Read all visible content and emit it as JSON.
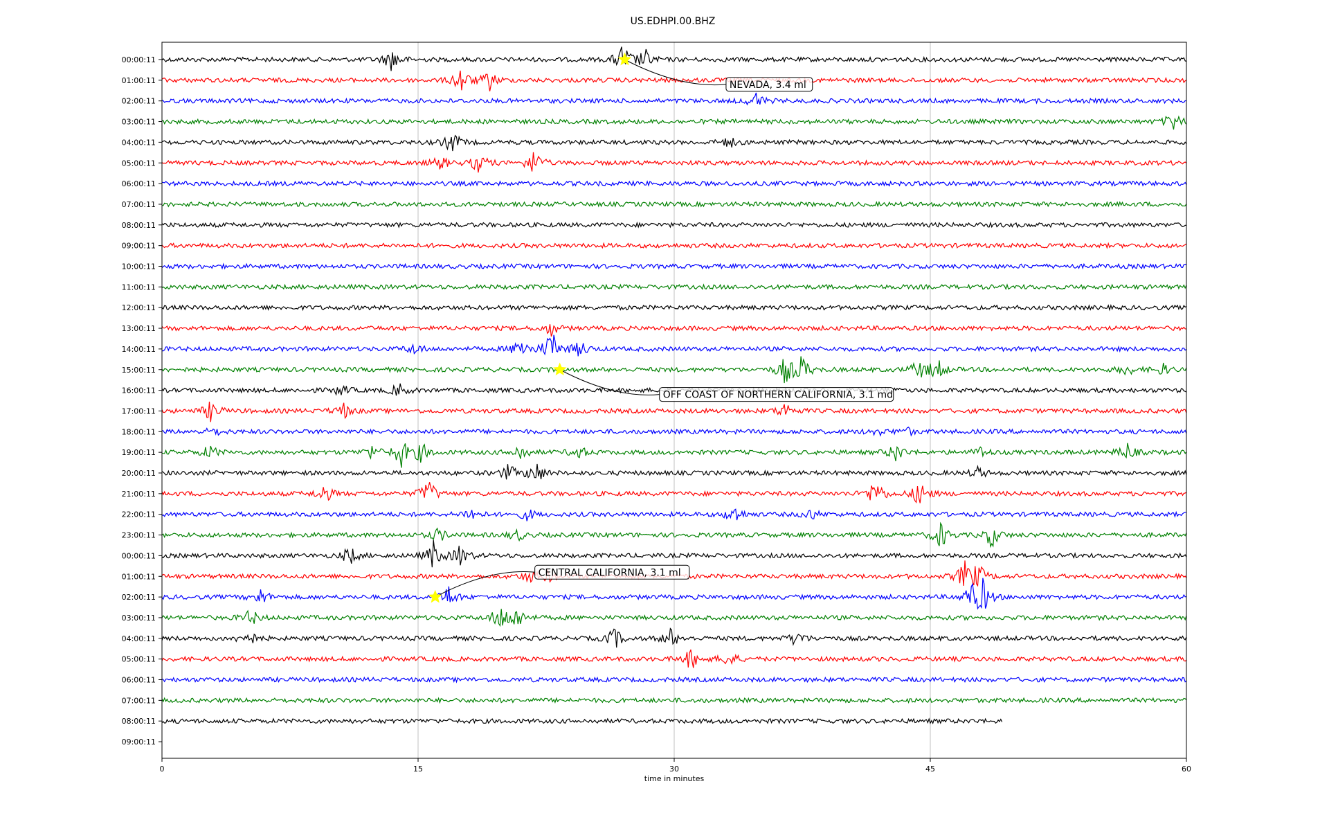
{
  "chart_data": {
    "type": "line",
    "title": "US.EDHPI.00.BHZ",
    "xlabel": "time in minutes",
    "ylabel": "",
    "xlim": [
      0,
      60
    ],
    "x_ticks": [
      0,
      15,
      30,
      45,
      60
    ],
    "x_tick_labels": [
      "0",
      "15",
      "30",
      "45",
      "60"
    ],
    "grid": "vertical lines at x ticks",
    "trace_colors": [
      "#000000",
      "#ff0000",
      "#0000ff",
      "#008000"
    ],
    "row_labels": [
      "00:00:11",
      "01:00:11",
      "02:00:11",
      "03:00:11",
      "04:00:11",
      "05:00:11",
      "06:00:11",
      "07:00:11",
      "08:00:11",
      "09:00:11",
      "10:00:11",
      "11:00:11",
      "12:00:11",
      "13:00:11",
      "14:00:11",
      "15:00:11",
      "16:00:11",
      "17:00:11",
      "18:00:11",
      "19:00:11",
      "20:00:11",
      "21:00:11",
      "22:00:11",
      "23:00:11",
      "00:00:11",
      "01:00:11",
      "02:00:11",
      "03:00:11",
      "04:00:11",
      "05:00:11",
      "06:00:11",
      "07:00:11",
      "08:00:11",
      "09:00:11"
    ],
    "traces_with_data": 33,
    "last_trace_end_minutes": 49.2,
    "bursts": [
      {
        "row": 0,
        "at": 13.5,
        "amp": 0.9
      },
      {
        "row": 0,
        "at": 27.0,
        "amp": 1.2
      },
      {
        "row": 0,
        "at": 28.3,
        "amp": 0.7
      },
      {
        "row": 1,
        "at": 17.5,
        "amp": 1.0
      },
      {
        "row": 1,
        "at": 19.2,
        "amp": 0.7
      },
      {
        "row": 2,
        "at": 34.8,
        "amp": 0.6
      },
      {
        "row": 3,
        "at": 59.2,
        "amp": 0.7
      },
      {
        "row": 4,
        "at": 17.0,
        "amp": 0.8
      },
      {
        "row": 4,
        "at": 33.2,
        "amp": 0.4
      },
      {
        "row": 5,
        "at": 16.3,
        "amp": 0.5
      },
      {
        "row": 5,
        "at": 18.6,
        "amp": 0.8
      },
      {
        "row": 5,
        "at": 21.8,
        "amp": 1.0
      },
      {
        "row": 13,
        "at": 22.8,
        "amp": 0.5
      },
      {
        "row": 14,
        "at": 14.8,
        "amp": 0.4
      },
      {
        "row": 14,
        "at": 21.0,
        "amp": 0.9
      },
      {
        "row": 14,
        "at": 22.8,
        "amp": 1.4
      },
      {
        "row": 14,
        "at": 24.5,
        "amp": 0.6
      },
      {
        "row": 15,
        "at": 36.5,
        "amp": 1.0
      },
      {
        "row": 15,
        "at": 37.5,
        "amp": 1.0
      },
      {
        "row": 15,
        "at": 44.3,
        "amp": 0.7
      },
      {
        "row": 15,
        "at": 45.4,
        "amp": 0.8
      },
      {
        "row": 15,
        "at": 56.5,
        "amp": 0.4
      },
      {
        "row": 15,
        "at": 58.6,
        "amp": 0.4
      },
      {
        "row": 16,
        "at": 10.5,
        "amp": 0.4
      },
      {
        "row": 16,
        "at": 13.9,
        "amp": 0.5
      },
      {
        "row": 17,
        "at": 2.9,
        "amp": 0.8
      },
      {
        "row": 17,
        "at": 10.6,
        "amp": 0.6
      },
      {
        "row": 17,
        "at": 36.5,
        "amp": 0.6
      },
      {
        "row": 18,
        "at": 3.0,
        "amp": 0.3
      },
      {
        "row": 18,
        "at": 41.8,
        "amp": 0.3
      },
      {
        "row": 18,
        "at": 43.6,
        "amp": 0.3
      },
      {
        "row": 19,
        "at": 2.8,
        "amp": 0.5
      },
      {
        "row": 19,
        "at": 12.3,
        "amp": 0.5
      },
      {
        "row": 19,
        "at": 14.0,
        "amp": 1.1
      },
      {
        "row": 19,
        "at": 15.2,
        "amp": 0.7
      },
      {
        "row": 19,
        "at": 21.0,
        "amp": 0.6
      },
      {
        "row": 19,
        "at": 24.4,
        "amp": 0.5
      },
      {
        "row": 19,
        "at": 43.0,
        "amp": 0.7
      },
      {
        "row": 19,
        "at": 48.0,
        "amp": 0.4
      },
      {
        "row": 19,
        "at": 56.5,
        "amp": 0.7
      },
      {
        "row": 20,
        "at": 20.3,
        "amp": 0.6
      },
      {
        "row": 20,
        "at": 21.9,
        "amp": 0.9
      },
      {
        "row": 20,
        "at": 47.8,
        "amp": 0.4
      },
      {
        "row": 21,
        "at": 9.5,
        "amp": 0.7
      },
      {
        "row": 21,
        "at": 15.6,
        "amp": 1.1
      },
      {
        "row": 21,
        "at": 41.8,
        "amp": 1.2
      },
      {
        "row": 21,
        "at": 44.4,
        "amp": 1.0
      },
      {
        "row": 22,
        "at": 18.1,
        "amp": 0.5
      },
      {
        "row": 22,
        "at": 21.4,
        "amp": 0.4
      },
      {
        "row": 22,
        "at": 33.5,
        "amp": 0.7
      },
      {
        "row": 22,
        "at": 38.0,
        "amp": 0.4
      },
      {
        "row": 23,
        "at": 16.2,
        "amp": 0.5
      },
      {
        "row": 23,
        "at": 20.8,
        "amp": 0.4
      },
      {
        "row": 23,
        "at": 45.6,
        "amp": 1.0
      },
      {
        "row": 23,
        "at": 48.6,
        "amp": 0.9
      },
      {
        "row": 24,
        "at": 11.0,
        "amp": 0.7
      },
      {
        "row": 24,
        "at": 15.9,
        "amp": 1.0
      },
      {
        "row": 24,
        "at": 17.5,
        "amp": 0.8
      },
      {
        "row": 25,
        "at": 21.5,
        "amp": 0.4
      },
      {
        "row": 25,
        "at": 22.6,
        "amp": 0.4
      },
      {
        "row": 25,
        "at": 47.0,
        "amp": 1.0
      },
      {
        "row": 25,
        "at": 47.8,
        "amp": 0.9
      },
      {
        "row": 26,
        "at": 5.8,
        "amp": 0.6
      },
      {
        "row": 26,
        "at": 16.8,
        "amp": 0.8
      },
      {
        "row": 26,
        "at": 47.4,
        "amp": 1.0
      },
      {
        "row": 26,
        "at": 48.1,
        "amp": 1.2
      },
      {
        "row": 27,
        "at": 5.2,
        "amp": 0.6
      },
      {
        "row": 27,
        "at": 19.8,
        "amp": 1.0
      },
      {
        "row": 27,
        "at": 20.8,
        "amp": 0.8
      },
      {
        "row": 28,
        "at": 5.0,
        "amp": 0.7
      },
      {
        "row": 28,
        "at": 26.5,
        "amp": 0.8
      },
      {
        "row": 28,
        "at": 29.8,
        "amp": 0.7
      },
      {
        "row": 28,
        "at": 37.2,
        "amp": 0.6
      },
      {
        "row": 29,
        "at": 31.0,
        "amp": 0.8
      },
      {
        "row": 29,
        "at": 33.2,
        "amp": 0.6
      }
    ],
    "events": [
      {
        "label": "NEVADA, 3.4 ml",
        "row": 0,
        "minute": 27.1,
        "label_at": {
          "row": 1.2,
          "minute": 33.2
        }
      },
      {
        "label": "OFF COAST OF NORTHERN CALIFORNIA, 3.1 md",
        "row": 15,
        "minute": 23.3,
        "label_at": {
          "row": 16.2,
          "minute": 29.3
        }
      },
      {
        "label": "CENTRAL CALIFORNIA, 3.1 ml",
        "row": 26,
        "minute": 16.0,
        "label_at": {
          "row": 24.8,
          "minute": 22.0
        }
      }
    ]
  }
}
